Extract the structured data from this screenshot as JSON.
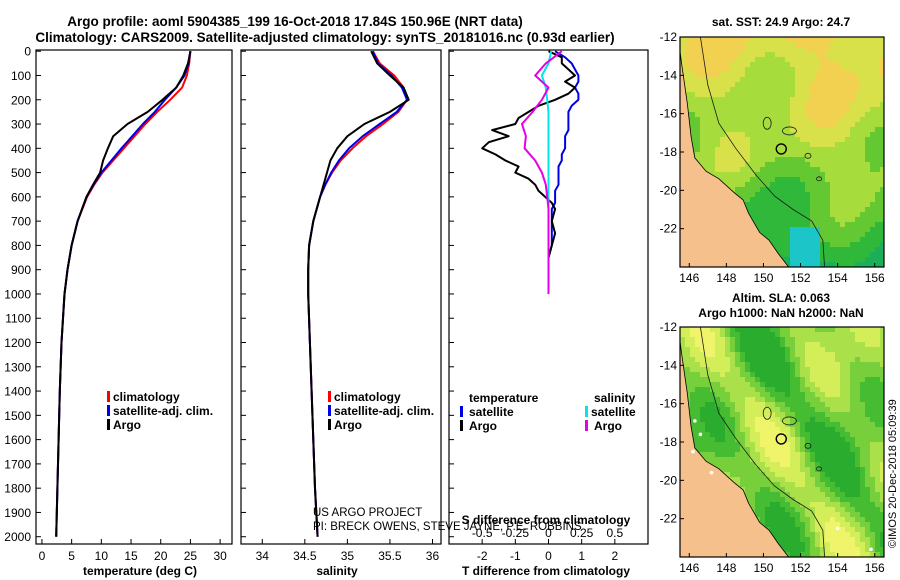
{
  "header": {
    "line1": "Argo profile: aoml 5904385_199 16-Oct-2018 17.84S 150.96E (NRT data)",
    "line2": "Climatology: CARS2009. Satellite-adjusted climatology: synTS_20181016.nc (0.93d earlier)"
  },
  "colors": {
    "climatology": "#ff0000",
    "satellite": "#0000e6",
    "argo": "#000000",
    "sat_salinity": "#00e6e6",
    "argo_salinity_diff": "#e600e6",
    "land": "#f5c08c"
  },
  "chart_data": [
    {
      "id": "temperature",
      "type": "line",
      "xlabel": "temperature (deg C)",
      "xlim": [
        -1,
        32
      ],
      "xticks": [
        0,
        5,
        10,
        15,
        20,
        25,
        30
      ],
      "ylim": [
        2030,
        -5
      ],
      "yticks": [
        0,
        100,
        200,
        300,
        400,
        500,
        600,
        700,
        800,
        900,
        1000,
        1100,
        1200,
        1300,
        1400,
        1500,
        1600,
        1700,
        1800,
        1900,
        2000
      ],
      "depth": [
        0,
        50,
        100,
        150,
        200,
        250,
        300,
        350,
        400,
        450,
        500,
        550,
        600,
        700,
        800,
        900,
        1000,
        1200,
        1400,
        1600,
        1800,
        2000
      ],
      "series": [
        {
          "name": "climatology",
          "color": "#ff0000",
          "values": [
            25.0,
            24.8,
            24.4,
            23.6,
            21.6,
            19.4,
            17.4,
            15.6,
            13.8,
            12.0,
            10.2,
            8.8,
            7.6,
            6.0,
            5.0,
            4.3,
            3.8,
            3.3,
            3.0,
            2.8,
            2.6,
            2.4
          ]
        },
        {
          "name": "satellite-adj. clim.",
          "color": "#0000e6",
          "values": [
            25.0,
            24.7,
            24.0,
            22.6,
            20.7,
            19.0,
            17.0,
            15.2,
            13.4,
            11.7,
            10.0,
            8.7,
            7.5,
            6.0,
            5.0,
            4.3,
            3.8,
            3.3,
            3.0,
            2.8,
            2.6,
            2.4
          ]
        },
        {
          "name": "Argo",
          "color": "#000000",
          "values": [
            25.0,
            24.6,
            23.8,
            22.6,
            20.3,
            17.8,
            14.4,
            12.0,
            11.1,
            10.3,
            9.8,
            8.6,
            7.5,
            6.0,
            5.0,
            4.3,
            3.8,
            3.3,
            3.0,
            2.8,
            2.6,
            2.4
          ]
        }
      ],
      "legend": [
        "climatology",
        "satellite-adj. clim.",
        "Argo"
      ]
    },
    {
      "id": "salinity",
      "type": "line",
      "xlabel": "salinity",
      "xlim": [
        33.75,
        36.1
      ],
      "xticks": [
        34,
        34.5,
        35,
        35.5,
        36
      ],
      "ylim": [
        2030,
        -5
      ],
      "depth": [
        0,
        50,
        100,
        150,
        200,
        250,
        300,
        350,
        400,
        450,
        500,
        550,
        600,
        700,
        800,
        900,
        1000,
        1200,
        1400,
        1600,
        1800,
        2000
      ],
      "series": [
        {
          "name": "climatology",
          "color": "#ff0000",
          "values": [
            35.3,
            35.38,
            35.55,
            35.66,
            35.7,
            35.6,
            35.42,
            35.22,
            35.06,
            34.92,
            34.82,
            34.74,
            34.68,
            34.6,
            34.55,
            34.54,
            34.54,
            34.56,
            34.58,
            34.6,
            34.62,
            34.65
          ]
        },
        {
          "name": "satellite-adj. clim.",
          "color": "#0000e6",
          "values": [
            35.3,
            35.36,
            35.52,
            35.64,
            35.7,
            35.58,
            35.38,
            35.18,
            35.02,
            34.9,
            34.81,
            34.74,
            34.68,
            34.6,
            34.55,
            34.54,
            34.54,
            34.56,
            34.58,
            34.6,
            34.62,
            34.65
          ]
        },
        {
          "name": "Argo",
          "color": "#000000",
          "values": [
            35.28,
            35.35,
            35.5,
            35.66,
            35.72,
            35.5,
            35.2,
            35.0,
            34.88,
            34.8,
            34.76,
            34.72,
            34.68,
            34.6,
            34.55,
            34.54,
            34.54,
            34.56,
            34.58,
            34.6,
            34.62,
            34.65
          ]
        }
      ],
      "legend": [
        "climatology",
        "satellite-adj. clim.",
        "Argo"
      ],
      "credit_line1": "US ARGO PROJECT",
      "credit_line2": "PI: BRECK OWENS, STEVE JAYNE, P.E. ROBBINS"
    },
    {
      "id": "difference",
      "type": "line",
      "xlabel": "T difference from climatology",
      "xlabel_top": "S difference from climatology",
      "xlim": [
        -3,
        3
      ],
      "xticks": [
        -2,
        -1,
        0,
        1,
        2
      ],
      "xticks_s": [
        "-0.5",
        "-0.25",
        "0",
        "0.25",
        "0.5"
      ],
      "ylim": [
        2030,
        -5
      ],
      "depth_t": [
        0,
        25,
        50,
        75,
        100,
        125,
        150,
        175,
        200,
        225,
        250,
        275,
        300,
        325,
        350,
        375,
        400,
        425,
        450,
        475,
        500,
        525,
        550,
        575,
        600,
        625,
        650,
        700,
        750,
        800,
        850,
        900,
        950,
        1000
      ],
      "depth_s": [
        0,
        50,
        100,
        150,
        200,
        250,
        300,
        350,
        400,
        450,
        500,
        550,
        600,
        650,
        700,
        800,
        900,
        1000
      ],
      "series": [
        {
          "name": "satellite (T)",
          "color": "#0000e6",
          "axis": "T",
          "values": [
            0.2,
            0.5,
            0.7,
            0.8,
            0.9,
            0.9,
            0.8,
            0.9,
            0.9,
            0.7,
            0.6,
            0.6,
            0.6,
            0.6,
            0.5,
            0.5,
            0.5,
            0.4,
            0.4,
            0.3,
            0.3,
            0.3,
            0.3,
            0.2,
            0.2,
            0.2,
            0.1,
            0.1,
            0.1,
            0.1,
            0.0,
            0.0,
            0.0,
            0.0
          ]
        },
        {
          "name": "Argo (T)",
          "color": "#000000",
          "axis": "T",
          "values": [
            0.0,
            0.4,
            0.4,
            0.6,
            0.8,
            0.5,
            0.8,
            0.6,
            0.2,
            -0.3,
            -0.6,
            -0.9,
            -1.0,
            -1.7,
            -1.2,
            -1.8,
            -2.0,
            -1.6,
            -1.3,
            -0.9,
            -1.0,
            -0.6,
            -0.4,
            -0.3,
            -0.1,
            0.1,
            0.2,
            0.1,
            0.2,
            0.1,
            0.0,
            0.0,
            0.0,
            0.0
          ]
        },
        {
          "name": "satellite (S)",
          "color": "#00e6e6",
          "axis": "S",
          "values": [
            0.02,
            0.0,
            -0.05,
            -0.02,
            -0.01,
            0.0,
            0.0,
            0.0,
            0.0,
            0.0,
            0.0,
            0.0,
            0.0,
            0.0,
            0.0,
            0.0,
            0.0,
            0.0
          ]
        },
        {
          "name": "Argo (S)",
          "color": "#e600e6",
          "axis": "S",
          "values": [
            0.1,
            -0.02,
            -0.1,
            0.0,
            -0.05,
            -0.12,
            -0.2,
            -0.17,
            -0.18,
            -0.1,
            -0.05,
            -0.02,
            -0.01,
            0.0,
            0.0,
            0.0,
            0.0,
            0.0
          ]
        }
      ],
      "legend_left_title": "temperature",
      "legend_right_title": "salinity",
      "legend_left": [
        "satellite",
        "Argo"
      ],
      "legend_right": [
        "satellite",
        "Argo"
      ]
    },
    {
      "id": "sst_map",
      "type": "heatmap",
      "title": "sat. SST: 24.9  Argo: 24.7",
      "xlim": [
        145.5,
        156.5
      ],
      "ylim": [
        -24,
        -12
      ],
      "xticks": [
        146,
        148,
        150,
        152,
        154,
        156
      ],
      "yticks": [
        -12,
        -14,
        -16,
        -18,
        -20,
        -22
      ],
      "profile": [
        150.96,
        -17.84
      ]
    },
    {
      "id": "sla_map",
      "type": "heatmap",
      "title": "Altim. SLA: 0.063",
      "title2": "Argo h1000: NaN h2000: NaN",
      "xlim": [
        145.5,
        156.5
      ],
      "ylim": [
        -24,
        -12
      ],
      "xticks": [
        146,
        148,
        150,
        152,
        154,
        156
      ],
      "yticks": [
        -12,
        -14,
        -16,
        -18,
        -20,
        -22
      ],
      "profile": [
        150.96,
        -17.84
      ]
    }
  ],
  "footer": {
    "watermark": "©IMOS 20-Dec-2018 05:09:39"
  }
}
